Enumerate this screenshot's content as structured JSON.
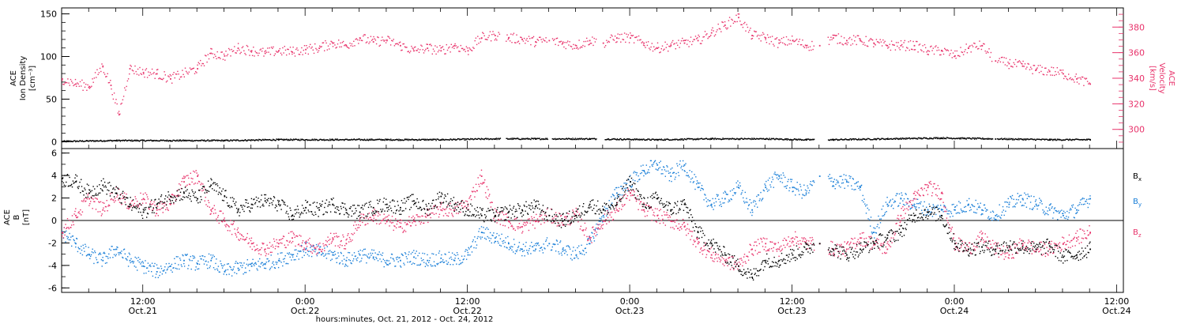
{
  "colors": {
    "ion_density": "#000000",
    "velocity": "#e8336b",
    "bx": "#000000",
    "by": "#1a7fd8",
    "bz": "#e8336b"
  },
  "xlabel": "hours:minutes, Oct. 21, 2012 - Oct. 24, 2012",
  "x_ticks": [
    {
      "hours": 12,
      "time": "12:00",
      "date": "Oct.21"
    },
    {
      "hours": 24,
      "time": "0:00",
      "date": "Oct.22"
    },
    {
      "hours": 36,
      "time": "12:00",
      "date": "Oct.22"
    },
    {
      "hours": 48,
      "time": "0:00",
      "date": "Oct.23"
    },
    {
      "hours": 60,
      "time": "12:00",
      "date": "Oct.23"
    },
    {
      "hours": 72,
      "time": "0:00",
      "date": "Oct.24"
    },
    {
      "hours": 84,
      "time": "12:00",
      "date": "Oct.24"
    }
  ],
  "chart_data": [
    {
      "type": "scatter",
      "title": "",
      "x_unit": "hours since 2012-10-21 00:00",
      "xlim": [
        6,
        84.5
      ],
      "ylabel_left": [
        "ACE",
        "Ion Density",
        "[cm⁻³]"
      ],
      "ylabel_right": [
        "ACE",
        "Velocity",
        "[km/s]"
      ],
      "ylim_left": [
        -8,
        157
      ],
      "ylim_right": [
        285,
        395
      ],
      "yticks_left": [
        0,
        50,
        100,
        150
      ],
      "yticks_right": [
        300,
        320,
        340,
        360,
        380
      ],
      "series": [
        {
          "name": "Ion Density",
          "axis": "left",
          "color": "#000000",
          "x": [
            6,
            10,
            14,
            18,
            22,
            26,
            30,
            34,
            38,
            41,
            45,
            50,
            54,
            58,
            61,
            63,
            67,
            71,
            75,
            79,
            82
          ],
          "values": [
            1,
            2,
            2,
            2,
            3,
            3,
            3,
            3,
            4,
            4,
            4,
            3,
            4,
            4,
            3,
            3,
            4,
            5,
            4,
            3,
            3
          ]
        },
        {
          "name": "Velocity",
          "axis": "right",
          "color": "#e8336b",
          "x": [
            6,
            7,
            8,
            9,
            9.6,
            10.2,
            11,
            12,
            13,
            14,
            16,
            17,
            18,
            19,
            20,
            21,
            22,
            23,
            24,
            25,
            26,
            27,
            28,
            29,
            30,
            31,
            32,
            33,
            34,
            35,
            36,
            37,
            38,
            39,
            40,
            41,
            42,
            43,
            44,
            45,
            46,
            47,
            48,
            49,
            50,
            51,
            52,
            53,
            54,
            55,
            56,
            57,
            58,
            59,
            60,
            61,
            62,
            63,
            64,
            65,
            66,
            67,
            68,
            69,
            70,
            71,
            72,
            73,
            74,
            75,
            76,
            77,
            78,
            79,
            80,
            81,
            82
          ],
          "values": [
            340,
            336,
            334,
            350,
            335,
            312,
            348,
            345,
            344,
            340,
            348,
            360,
            358,
            364,
            362,
            360,
            362,
            361,
            363,
            364,
            368,
            366,
            372,
            369,
            370,
            366,
            362,
            364,
            362,
            366,
            362,
            372,
            374,
            372,
            371,
            369,
            370,
            368,
            366,
            370,
            368,
            372,
            372,
            368,
            364,
            366,
            368,
            370,
            376,
            382,
            388,
            374,
            372,
            368,
            370,
            366,
            366,
            372,
            370,
            370,
            368,
            366,
            366,
            366,
            362,
            362,
            358,
            364,
            366,
            354,
            352,
            350,
            347,
            346,
            344,
            340,
            336
          ]
        }
      ]
    },
    {
      "type": "scatter",
      "title": "",
      "x_unit": "hours since 2012-10-21 00:00",
      "xlim": [
        6,
        84.5
      ],
      "ylabel_left": [
        "ACE",
        "B",
        "[nT]"
      ],
      "ylim": [
        -6.4,
        6.4
      ],
      "yticks": [
        -6,
        -4,
        -2,
        0,
        2,
        4,
        6
      ],
      "legend_location": "right",
      "series": [
        {
          "name": "Bx",
          "legend_main": "B",
          "legend_sub": "x",
          "color": "#000000",
          "x": [
            6,
            7,
            8,
            9,
            10,
            11,
            12,
            13,
            14,
            15,
            16,
            17,
            18,
            19,
            20,
            21,
            22,
            23,
            24,
            25,
            26,
            27,
            28,
            29,
            30,
            31,
            32,
            33,
            34,
            35,
            36,
            37,
            38,
            39,
            40,
            41,
            42,
            43,
            44,
            45,
            46,
            47,
            48,
            49,
            50,
            51,
            52,
            53,
            54,
            55,
            56,
            57,
            58,
            59,
            60,
            61,
            62,
            63,
            64,
            65,
            66,
            67,
            68,
            69,
            70,
            71,
            72,
            73,
            74,
            75,
            76,
            77,
            78,
            79,
            80,
            81,
            82
          ],
          "values": [
            3.8,
            3.5,
            2.5,
            3.2,
            2.5,
            1.5,
            0.8,
            1.5,
            2.2,
            2.5,
            2.0,
            3.2,
            2.2,
            1.0,
            1.5,
            1.8,
            1.5,
            0.5,
            1.2,
            1.0,
            1.5,
            1.0,
            0.8,
            1.2,
            1.5,
            1.2,
            1.8,
            1.0,
            2.2,
            1.5,
            1.0,
            0.5,
            0.5,
            0.8,
            1.0,
            1.3,
            0.5,
            0.0,
            0.5,
            1.5,
            1.0,
            1.5,
            3.5,
            1.5,
            2.0,
            1.0,
            1.5,
            -1.0,
            -2.0,
            -3.0,
            -4.0,
            -5.0,
            -3.5,
            -3.5,
            -3.0,
            -2.5,
            -2.0,
            -2.5,
            -3.0,
            -2.5,
            -2.0,
            -1.5,
            -1.0,
            0.5,
            0.8,
            0.5,
            -2.0,
            -2.5,
            -2.3,
            -2.5,
            -2.2,
            -2.3,
            -2.5,
            -2.2,
            -3.2,
            -3.0,
            -2.5
          ]
        },
        {
          "name": "By",
          "legend_main": "B",
          "legend_sub": "y",
          "color": "#1a7fd8",
          "x": [
            6,
            7,
            8,
            9,
            10,
            11,
            12,
            13,
            14,
            15,
            16,
            17,
            18,
            19,
            20,
            21,
            22,
            23,
            24,
            25,
            26,
            27,
            28,
            29,
            30,
            31,
            32,
            33,
            34,
            35,
            36,
            37,
            38,
            39,
            40,
            41,
            42,
            43,
            44,
            45,
            46,
            47,
            48,
            49,
            50,
            51,
            52,
            53,
            54,
            55,
            56,
            57,
            58,
            59,
            60,
            61,
            62,
            63,
            64,
            65,
            66,
            67,
            68,
            69,
            70,
            71,
            72,
            73,
            74,
            75,
            76,
            77,
            78,
            79,
            80,
            81,
            82
          ],
          "values": [
            -1.0,
            -2.0,
            -3.0,
            -3.5,
            -2.5,
            -3.5,
            -4.0,
            -4.5,
            -4.0,
            -3.5,
            -3.8,
            -3.5,
            -4.5,
            -4.2,
            -4.0,
            -3.8,
            -3.5,
            -3.0,
            -2.5,
            -2.8,
            -3.0,
            -3.5,
            -3.0,
            -3.2,
            -3.5,
            -3.5,
            -3.2,
            -3.5,
            -3.3,
            -3.5,
            -3.0,
            -1.0,
            -1.5,
            -2.0,
            -2.5,
            -2.5,
            -2.0,
            -2.5,
            -3.0,
            -2.0,
            0.5,
            2.5,
            3.5,
            4.5,
            5.0,
            4.0,
            5.0,
            3.0,
            1.5,
            2.0,
            3.0,
            1.0,
            3.0,
            4.0,
            3.0,
            2.5,
            4.0,
            3.5,
            3.5,
            3.0,
            -1.0,
            1.5,
            2.0,
            1.5,
            1.0,
            1.0,
            1.0,
            1.5,
            1.0,
            0.5,
            1.5,
            2.0,
            1.5,
            1.0,
            0.5,
            1.0,
            2.0
          ]
        },
        {
          "name": "Bz",
          "legend_main": "B",
          "legend_sub": "z",
          "color": "#e8336b",
          "x": [
            6,
            7,
            8,
            9,
            10,
            11,
            12,
            13,
            14,
            15,
            16,
            17,
            18,
            19,
            20,
            21,
            22,
            23,
            24,
            25,
            26,
            27,
            28,
            29,
            30,
            31,
            32,
            33,
            34,
            35,
            36,
            37,
            38,
            39,
            40,
            41,
            42,
            43,
            44,
            45,
            46,
            47,
            48,
            49,
            50,
            51,
            52,
            53,
            54,
            55,
            56,
            57,
            58,
            59,
            60,
            61,
            62,
            63,
            64,
            65,
            66,
            67,
            68,
            69,
            70,
            71,
            72,
            73,
            74,
            75,
            76,
            77,
            78,
            79,
            80,
            81,
            82
          ],
          "values": [
            -1.0,
            0.5,
            2.0,
            1.0,
            2.5,
            1.5,
            2.0,
            1.0,
            1.5,
            3.5,
            4.0,
            1.0,
            0.0,
            -1.0,
            -2.0,
            -2.5,
            -2.0,
            -1.5,
            -2.0,
            -2.5,
            -1.5,
            -2.0,
            0.0,
            0.5,
            0.0,
            -0.5,
            0.0,
            0.5,
            1.0,
            1.0,
            1.5,
            4.0,
            0.5,
            0.0,
            -0.5,
            0.0,
            0.5,
            0.0,
            0.5,
            -1.5,
            0.0,
            1.0,
            2.5,
            1.0,
            0.5,
            0.0,
            -0.5,
            -2.0,
            -3.0,
            -3.5,
            -4.0,
            -2.5,
            -2.0,
            -2.5,
            -1.5,
            -2.0,
            -2.0,
            -2.5,
            -2.5,
            -1.5,
            -2.0,
            -2.5,
            0.5,
            2.0,
            3.0,
            2.5,
            -2.0,
            -2.5,
            -1.5,
            -2.5,
            -3.0,
            -2.0,
            -2.5,
            -2.5,
            -2.0,
            -1.5,
            -1.0
          ]
        }
      ]
    }
  ]
}
